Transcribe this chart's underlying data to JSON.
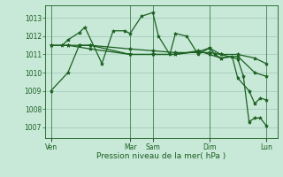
{
  "bg_color": "#c8e8d8",
  "grid_color": "#a0c8b8",
  "line_color": "#1a6020",
  "xlabel": "Pression niveau de la mer( hPa )",
  "ylim": [
    1006.4,
    1013.7
  ],
  "yticks": [
    1007,
    1008,
    1009,
    1010,
    1011,
    1012,
    1013
  ],
  "xtick_labels": [
    "Ven",
    "Mar",
    "Sam",
    "Dim",
    "Lun"
  ],
  "xtick_positions": [
    0,
    14,
    18,
    28,
    38
  ],
  "vlines": [
    0,
    14,
    18,
    28,
    38
  ],
  "xlim": [
    -1,
    40
  ],
  "lines": [
    {
      "x": [
        0,
        3,
        5,
        7,
        14,
        18,
        22,
        26,
        28,
        30,
        33,
        36,
        38
      ],
      "y": [
        1009.0,
        1010.0,
        1011.5,
        1011.5,
        1011.0,
        1011.0,
        1011.0,
        1011.2,
        1011.0,
        1010.8,
        1010.9,
        1010.0,
        1009.8
      ]
    },
    {
      "x": [
        0,
        3,
        5,
        7,
        14,
        18,
        22,
        26,
        28,
        30,
        33,
        36,
        38
      ],
      "y": [
        1011.5,
        1011.5,
        1011.5,
        1011.5,
        1011.3,
        1011.2,
        1011.1,
        1011.1,
        1011.1,
        1011.0,
        1011.0,
        1010.8,
        1010.5
      ]
    },
    {
      "x": [
        2,
        3,
        5,
        6,
        9,
        11,
        13,
        14,
        16,
        18,
        19,
        21,
        22,
        24,
        26,
        28,
        29,
        30,
        32,
        33,
        35,
        36,
        37,
        38
      ],
      "y": [
        1011.5,
        1011.8,
        1012.2,
        1012.5,
        1010.5,
        1012.3,
        1012.3,
        1012.15,
        1013.1,
        1013.3,
        1012.0,
        1011.0,
        1012.15,
        1012.0,
        1011.0,
        1011.35,
        1011.0,
        1010.8,
        1010.9,
        1009.7,
        1009.0,
        1008.3,
        1008.6,
        1008.5
      ]
    },
    {
      "x": [
        0,
        3,
        7,
        14,
        18,
        22,
        26,
        28,
        30,
        33,
        34,
        35,
        36,
        37,
        38
      ],
      "y": [
        1011.5,
        1011.5,
        1011.3,
        1011.0,
        1011.0,
        1011.0,
        1011.15,
        1011.35,
        1011.0,
        1010.75,
        1009.8,
        1007.3,
        1007.5,
        1007.5,
        1007.1
      ]
    }
  ]
}
